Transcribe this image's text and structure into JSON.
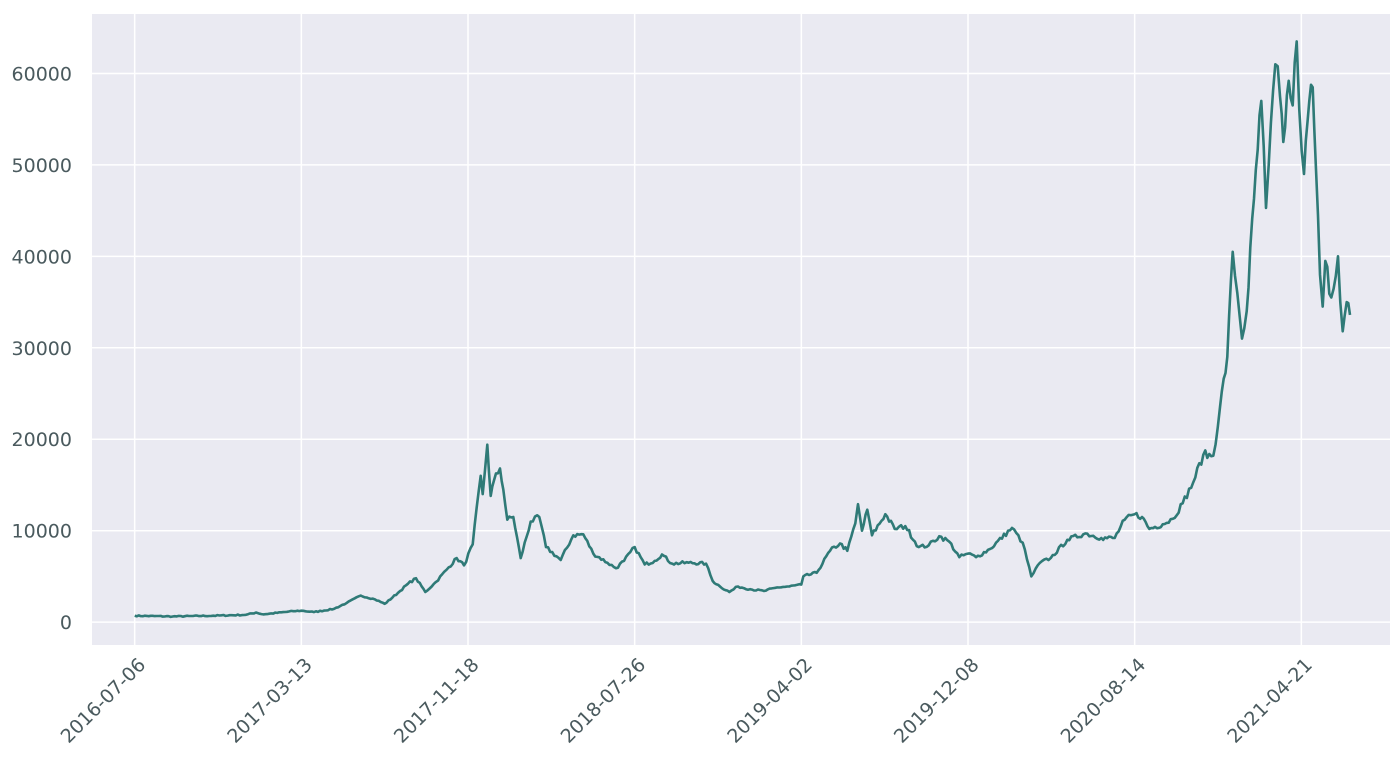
{
  "chart_data": {
    "type": "line",
    "title": "",
    "xlabel": "",
    "ylabel": "",
    "x_ticks": [
      "2016-07-06",
      "2017-03-13",
      "2017-11-18",
      "2018-07-26",
      "2019-04-02",
      "2019-12-08",
      "2020-08-14",
      "2021-04-21"
    ],
    "y_ticks": [
      0,
      10000,
      20000,
      30000,
      40000,
      50000,
      60000
    ],
    "xlim": [
      "2016-05-03",
      "2021-09-01"
    ],
    "ylim": [
      -2500,
      66500
    ],
    "grid": true,
    "colors": {
      "background": "#eaeaf2",
      "line": "#2f7a77",
      "grid": "#ffffff",
      "text": "#4a5a5e"
    },
    "series": [
      {
        "values": [
          [
            "2016-07-06",
            700
          ],
          [
            "2016-09-01",
            620
          ],
          [
            "2016-11-01",
            700
          ],
          [
            "2016-12-20",
            800
          ],
          [
            "2017-01-04",
            1050
          ],
          [
            "2017-01-15",
            850
          ],
          [
            "2017-03-01",
            1200
          ],
          [
            "2017-03-13",
            1250
          ],
          [
            "2017-04-01",
            1100
          ],
          [
            "2017-05-01",
            1450
          ],
          [
            "2017-05-20",
            2100
          ],
          [
            "2017-06-10",
            2900
          ],
          [
            "2017-07-01",
            2500
          ],
          [
            "2017-07-16",
            2000
          ],
          [
            "2017-08-05",
            3200
          ],
          [
            "2017-08-20",
            4200
          ],
          [
            "2017-09-01",
            4800
          ],
          [
            "2017-09-15",
            3300
          ],
          [
            "2017-10-01",
            4400
          ],
          [
            "2017-10-20",
            6000
          ],
          [
            "2017-11-01",
            7000
          ],
          [
            "2017-11-12",
            6200
          ],
          [
            "2017-11-25",
            8500
          ],
          [
            "2017-12-07",
            16000
          ],
          [
            "2017-12-10",
            14000
          ],
          [
            "2017-12-17",
            19400
          ],
          [
            "2017-12-22",
            13800
          ],
          [
            "2017-12-27",
            15500
          ],
          [
            "2018-01-05",
            16800
          ],
          [
            "2018-01-10",
            14500
          ],
          [
            "2018-01-16",
            11200
          ],
          [
            "2018-01-25",
            11500
          ],
          [
            "2018-02-05",
            7000
          ],
          [
            "2018-02-20",
            11000
          ],
          [
            "2018-03-05",
            11500
          ],
          [
            "2018-03-15",
            8200
          ],
          [
            "2018-04-06",
            6800
          ],
          [
            "2018-04-25",
            9500
          ],
          [
            "2018-05-10",
            9600
          ],
          [
            "2018-05-25",
            7500
          ],
          [
            "2018-06-15",
            6500
          ],
          [
            "2018-06-28",
            5900
          ],
          [
            "2018-07-10",
            6700
          ],
          [
            "2018-07-26",
            8200
          ],
          [
            "2018-08-10",
            6300
          ],
          [
            "2018-08-25",
            6700
          ],
          [
            "2018-09-05",
            7400
          ],
          [
            "2018-09-20",
            6400
          ],
          [
            "2018-10-15",
            6500
          ],
          [
            "2018-11-10",
            6400
          ],
          [
            "2018-11-20",
            4500
          ],
          [
            "2018-12-01",
            3900
          ],
          [
            "2018-12-15",
            3300
          ],
          [
            "2018-12-28",
            3900
          ],
          [
            "2019-01-15",
            3600
          ],
          [
            "2019-02-05",
            3400
          ],
          [
            "2019-02-25",
            3800
          ],
          [
            "2019-03-15",
            3900
          ],
          [
            "2019-04-02",
            4100
          ],
          [
            "2019-04-05",
            5000
          ],
          [
            "2019-04-25",
            5400
          ],
          [
            "2019-05-15",
            7800
          ],
          [
            "2019-05-30",
            8600
          ],
          [
            "2019-06-10",
            7800
          ],
          [
            "2019-06-22",
            10800
          ],
          [
            "2019-06-26",
            12900
          ],
          [
            "2019-07-02",
            10000
          ],
          [
            "2019-07-10",
            12300
          ],
          [
            "2019-07-17",
            9500
          ],
          [
            "2019-08-06",
            11800
          ],
          [
            "2019-08-20",
            10200
          ],
          [
            "2019-09-05",
            10500
          ],
          [
            "2019-09-25",
            8200
          ],
          [
            "2019-10-10",
            8400
          ],
          [
            "2019-10-26",
            9400
          ],
          [
            "2019-11-10",
            8800
          ],
          [
            "2019-11-25",
            7100
          ],
          [
            "2019-12-08",
            7500
          ],
          [
            "2019-12-20",
            7100
          ],
          [
            "2020-01-10",
            8000
          ],
          [
            "2020-02-12",
            10300
          ],
          [
            "2020-02-28",
            8700
          ],
          [
            "2020-03-12",
            5000
          ],
          [
            "2020-03-25",
            6500
          ],
          [
            "2020-04-10",
            7000
          ],
          [
            "2020-05-05",
            9000
          ],
          [
            "2020-06-01",
            9700
          ],
          [
            "2020-06-25",
            9200
          ],
          [
            "2020-07-15",
            9200
          ],
          [
            "2020-07-30",
            11200
          ],
          [
            "2020-08-14",
            11800
          ],
          [
            "2020-08-25",
            11500
          ],
          [
            "2020-09-05",
            10200
          ],
          [
            "2020-09-25",
            10700
          ],
          [
            "2020-10-10",
            11300
          ],
          [
            "2020-10-25",
            13000
          ],
          [
            "2020-11-10",
            15300
          ],
          [
            "2020-11-25",
            18300
          ],
          [
            "2020-12-10",
            18200
          ],
          [
            "2020-12-20",
            23500
          ],
          [
            "2020-12-31",
            29000
          ],
          [
            "2021-01-08",
            40500
          ],
          [
            "2021-01-15",
            36000
          ],
          [
            "2021-01-22",
            31000
          ],
          [
            "2021-01-29",
            34000
          ],
          [
            "2021-02-09",
            46300
          ],
          [
            "2021-02-20",
            57000
          ],
          [
            "2021-02-27",
            45300
          ],
          [
            "2021-03-03",
            50000
          ],
          [
            "2021-03-13",
            61000
          ],
          [
            "2021-03-20",
            57500
          ],
          [
            "2021-03-25",
            52500
          ],
          [
            "2021-04-02",
            59200
          ],
          [
            "2021-04-08",
            56500
          ],
          [
            "2021-04-14",
            63500
          ],
          [
            "2021-04-18",
            56000
          ],
          [
            "2021-04-25",
            49000
          ],
          [
            "2021-05-03",
            57000
          ],
          [
            "2021-05-08",
            58500
          ],
          [
            "2021-05-13",
            49500
          ],
          [
            "2021-05-19",
            38000
          ],
          [
            "2021-05-23",
            34500
          ],
          [
            "2021-05-27",
            39500
          ],
          [
            "2021-06-05",
            35500
          ],
          [
            "2021-06-15",
            40000
          ],
          [
            "2021-06-22",
            31800
          ],
          [
            "2021-06-28",
            35000
          ],
          [
            "2021-07-03",
            33600
          ]
        ]
      }
    ]
  }
}
